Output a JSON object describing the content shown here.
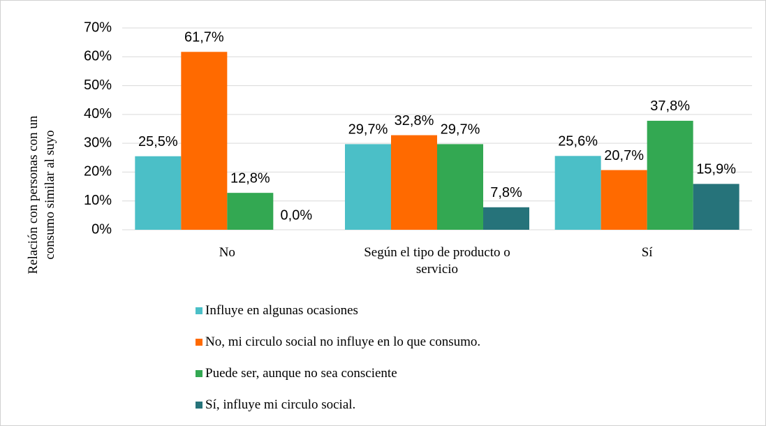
{
  "chart_data": {
    "type": "bar",
    "y_label": "Relación con personas con un consumo similar al suyo",
    "categories": [
      "No",
      "Según el tipo de producto o servicio",
      "Sí"
    ],
    "series": [
      {
        "name": "Influye en algunas ocasiones",
        "color": "#4bbfc7",
        "values": [
          25.5,
          29.7,
          25.6
        ],
        "value_labels": [
          "25,5%",
          "29,7%",
          "25,6%"
        ]
      },
      {
        "name": "No, mi circulo social no influye en lo que consumo.",
        "color": "#ff6a00",
        "values": [
          61.7,
          32.8,
          20.7
        ],
        "value_labels": [
          "61,7%",
          "32,8%",
          "20,7%"
        ]
      },
      {
        "name": "Puede ser, aunque no sea consciente",
        "color": "#33a852",
        "values": [
          12.8,
          29.7,
          37.8
        ],
        "value_labels": [
          "12,8%",
          "29,7%",
          "37,8%"
        ]
      },
      {
        "name": "Sí, influye mi circulo social.",
        "color": "#26737a",
        "values": [
          0.0,
          7.8,
          15.9
        ],
        "value_labels": [
          "0,0%",
          "7,8%",
          "15,9%"
        ]
      }
    ],
    "ylim": [
      0,
      70
    ],
    "yticks": [
      {
        "value": 0,
        "label": "0%"
      },
      {
        "value": 10,
        "label": "10%"
      },
      {
        "value": 20,
        "label": "20%"
      },
      {
        "value": 30,
        "label": "30%"
      },
      {
        "value": 40,
        "label": "40%"
      },
      {
        "value": 50,
        "label": "50%"
      },
      {
        "value": 60,
        "label": "60%"
      },
      {
        "value": 70,
        "label": "70%"
      }
    ],
    "grid": true
  }
}
